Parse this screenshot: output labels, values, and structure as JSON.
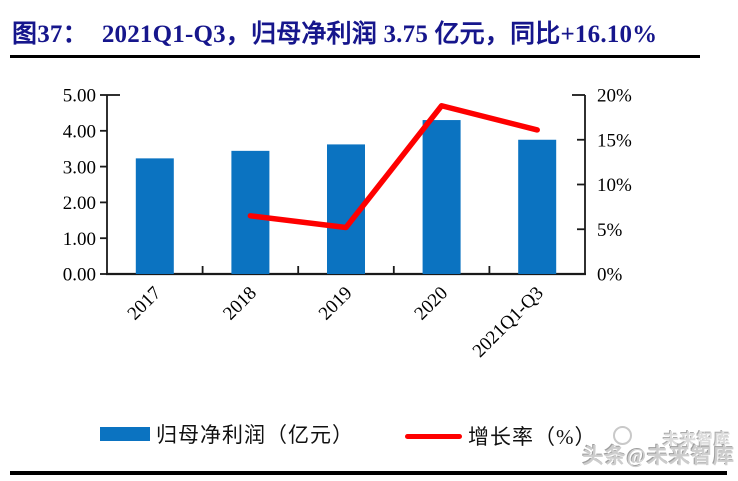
{
  "title": {
    "prefix": "图37：",
    "text": "2021Q1-Q3，归母净利润 3.75 亿元，同比+16.10%"
  },
  "legend": {
    "bar_label": "归母净利润（亿元）",
    "line_label": "增长率（%）"
  },
  "watermark": {
    "small_text": "未来智库",
    "main_text": "头条@未来智库"
  },
  "colors": {
    "title": "#16168c",
    "bar": "#0b73c1",
    "line": "#fe0000",
    "axis": "#1a1a1a",
    "tick_text": "#000000"
  },
  "chart_data": {
    "type": "bar",
    "subtype": "bar-line combo with dual y axes",
    "title": "2021Q1-Q3，归母净利润 3.75 亿元，同比+16.10%",
    "categories": [
      "2017",
      "2018",
      "2019",
      "2020",
      "2021Q1-Q3"
    ],
    "series": [
      {
        "name": "归母净利润（亿元）",
        "type": "bar",
        "axis": "left",
        "color": "#0b73c1",
        "values": [
          3.23,
          3.44,
          3.62,
          4.3,
          3.75
        ]
      },
      {
        "name": "增长率（%）",
        "type": "line",
        "axis": "right",
        "color": "#fe0000",
        "values": [
          null,
          6.5,
          5.2,
          18.8,
          16.1
        ]
      }
    ],
    "left_axis": {
      "min": 0,
      "max": 5,
      "step": 1,
      "tick_labels": [
        "5.00",
        "4.00",
        "3.00",
        "2.00",
        "1.00",
        "0.00"
      ]
    },
    "right_axis": {
      "min": 0,
      "max": 20,
      "step": 5,
      "tick_labels": [
        "20%",
        "15%",
        "10%",
        "5%",
        "0%"
      ]
    },
    "grid": false,
    "legend_position": "bottom",
    "x_label_rotation": -45
  }
}
